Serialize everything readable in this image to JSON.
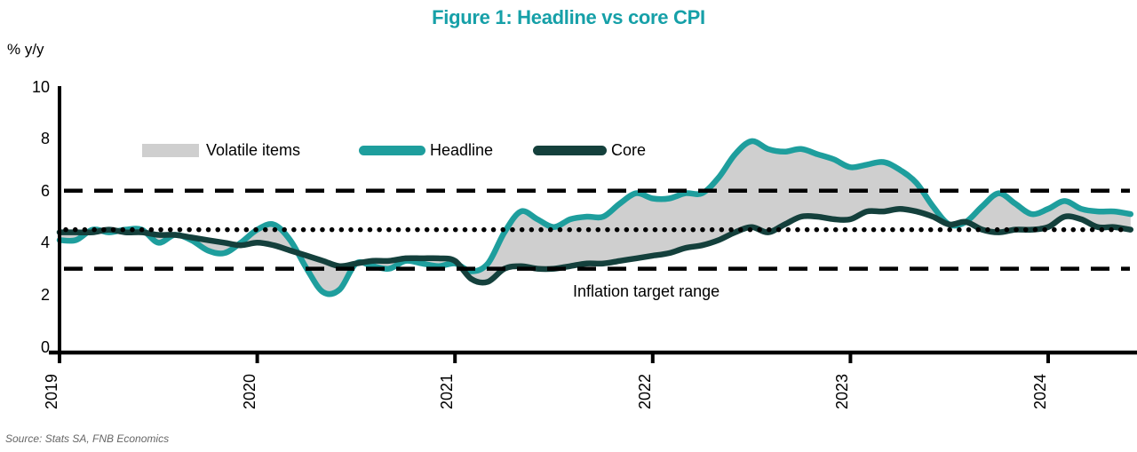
{
  "title": "Figure 1: Headline vs core CPI",
  "ylabel": "% y/y",
  "legend": {
    "volatile_label": "Volatile items",
    "headline_label": "Headline",
    "core_label": "Core"
  },
  "annotation": "Inflation target range",
  "source": "Source: Stats SA, FNB Economics",
  "colors": {
    "title": "#16A0A8",
    "headline": "#1E9E9D",
    "core": "#14403C",
    "band": "#CFCFCF",
    "axis": "#000000",
    "source_text": "#666666"
  },
  "chart_data": {
    "type": "line",
    "title": "Figure 1: Headline vs core CPI",
    "ylabel": "% y/y",
    "ylim": [
      0,
      10
    ],
    "yticks": [
      0,
      2,
      4,
      6,
      8,
      10
    ],
    "xticks": [
      2019,
      2020,
      2021,
      2022,
      2023,
      2024
    ],
    "x_start": "2019-01",
    "x_end": "2024-06",
    "frequency": "monthly",
    "grid": false,
    "legend_position": "top-inside",
    "reference_lines": [
      {
        "label": "inflation target upper bound",
        "value": 6,
        "style": "dashed"
      },
      {
        "label": "inflation target midpoint",
        "value": 4.5,
        "style": "dotted"
      },
      {
        "label": "inflation target lower bound",
        "value": 3,
        "style": "dashed"
      }
    ],
    "band": {
      "name": "Volatile items",
      "between": [
        "Headline",
        "Core"
      ]
    },
    "series": [
      {
        "name": "Headline",
        "values": [
          4.1,
          4.1,
          4.5,
          4.4,
          4.5,
          4.5,
          4.0,
          4.3,
          4.1,
          3.7,
          3.6,
          4.0,
          4.5,
          4.7,
          4.1,
          3.0,
          2.1,
          2.2,
          3.2,
          3.1,
          3.0,
          3.3,
          3.2,
          3.1,
          3.2,
          2.9,
          3.2,
          4.4,
          5.2,
          4.9,
          4.6,
          4.9,
          5.0,
          5.0,
          5.5,
          5.9,
          5.7,
          5.7,
          5.9,
          5.9,
          6.5,
          7.4,
          7.9,
          7.6,
          7.5,
          7.6,
          7.4,
          7.2,
          6.9,
          7.0,
          7.1,
          6.8,
          6.3,
          5.4,
          4.7,
          4.8,
          5.4,
          5.9,
          5.5,
          5.1,
          5.3,
          5.6,
          5.3,
          5.2,
          5.2,
          5.1
        ]
      },
      {
        "name": "Core",
        "values": [
          4.4,
          4.4,
          4.4,
          4.5,
          4.4,
          4.4,
          4.3,
          4.3,
          4.2,
          4.1,
          4.0,
          3.9,
          4.0,
          3.9,
          3.7,
          3.5,
          3.3,
          3.1,
          3.2,
          3.3,
          3.3,
          3.4,
          3.4,
          3.4,
          3.3,
          2.6,
          2.5,
          3.0,
          3.1,
          3.0,
          3.0,
          3.1,
          3.2,
          3.2,
          3.3,
          3.4,
          3.5,
          3.6,
          3.8,
          3.9,
          4.1,
          4.4,
          4.6,
          4.4,
          4.7,
          5.0,
          5.0,
          4.9,
          4.9,
          5.2,
          5.2,
          5.3,
          5.2,
          5.0,
          4.7,
          4.8,
          4.5,
          4.4,
          4.5,
          4.5,
          4.6,
          5.0,
          4.9,
          4.6,
          4.6,
          4.5
        ]
      }
    ]
  }
}
